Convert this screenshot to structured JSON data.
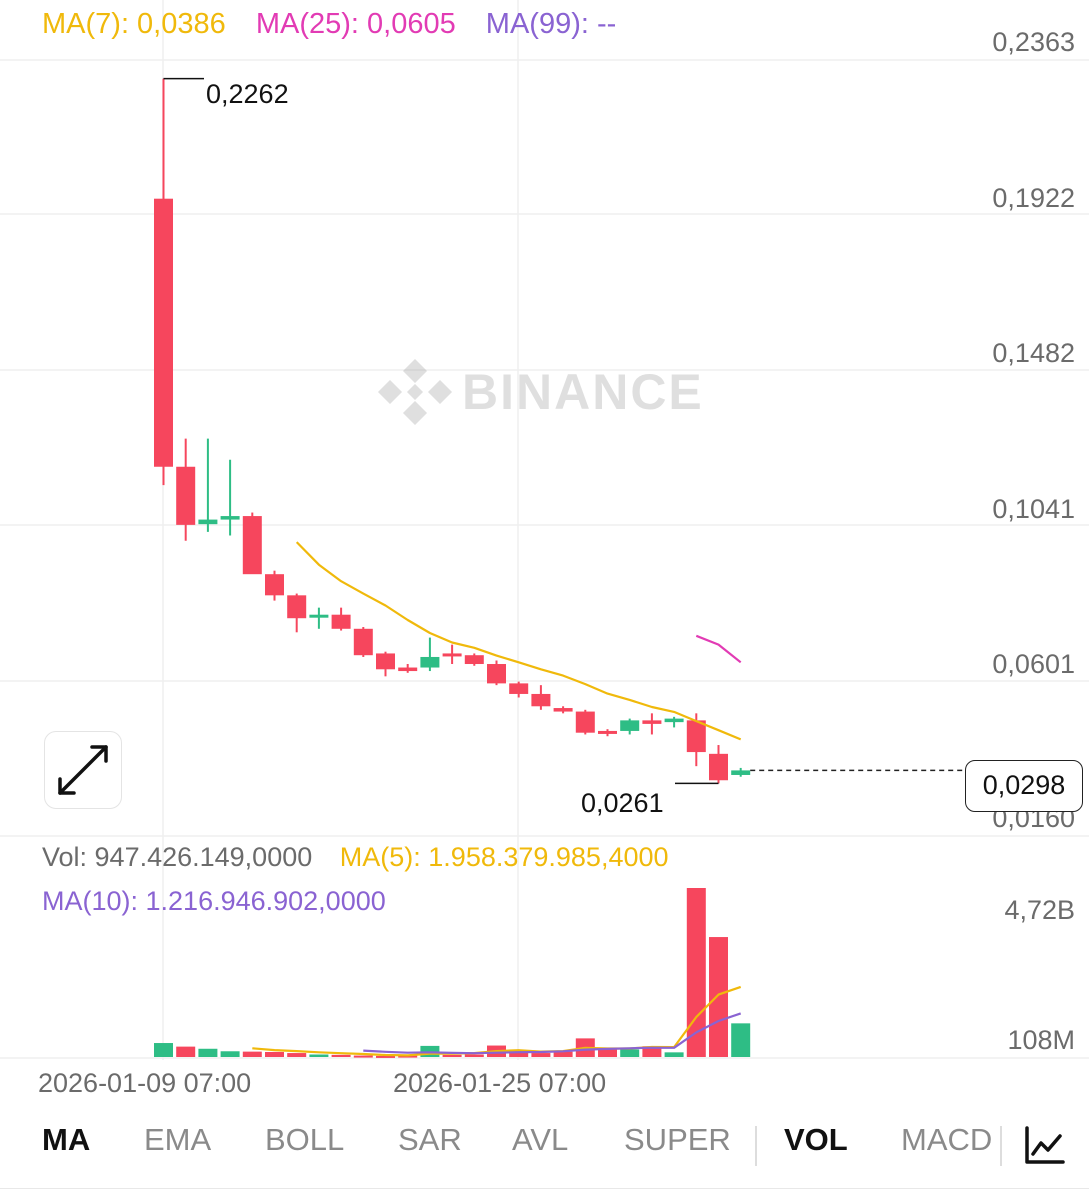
{
  "legend": {
    "ma7": "MA(7): 0,0386",
    "ma25": "MA(25): 0,0605",
    "ma99": "MA(99): --",
    "vol": "Vol: 947.426.149,0000",
    "vol_ma5": "MA(5): 1.958.379.985,4000",
    "vol_ma10": "MA(10): 1.216.946.902,0000"
  },
  "colors": {
    "up": "#2ebd85",
    "down": "#f6465d",
    "ma7": "#f0b90b",
    "ma25": "#e23bb4",
    "ma99": "#8a63d2",
    "grid": "#efefef",
    "axis_text": "#6b6b6b"
  },
  "watermark": {
    "text": "BINANCE",
    "icon": "binance-logo-icon"
  },
  "price_axis": {
    "labels": [
      "0,2363",
      "0,1922",
      "0,1482",
      "0,1041",
      "0,0601",
      "0,0160"
    ],
    "values": [
      0.2363,
      0.1922,
      0.1482,
      0.1041,
      0.0601,
      0.016
    ]
  },
  "volume_axis": {
    "labels": [
      "4,72B",
      "108M"
    ],
    "values": [
      4720000000,
      108000000
    ]
  },
  "time_axis": {
    "labels": [
      "2026-01-09 07:00",
      "2026-01-25 07:00"
    ]
  },
  "annotations": {
    "high_label": "0,2262",
    "low_label": "0,0261",
    "current_price": "0,0298"
  },
  "chart_data": {
    "type": "candlestick",
    "interval_start": "2026-01-09",
    "candles": [
      {
        "o": 0.1921,
        "h": 0.2262,
        "l": 0.1108,
        "c": 0.116
      },
      {
        "o": 0.116,
        "h": 0.124,
        "l": 0.095,
        "c": 0.0995
      },
      {
        "o": 0.0997,
        "h": 0.124,
        "l": 0.0975,
        "c": 0.101
      },
      {
        "o": 0.101,
        "h": 0.118,
        "l": 0.0965,
        "c": 0.102
      },
      {
        "o": 0.102,
        "h": 0.103,
        "l": 0.086,
        "c": 0.0855
      },
      {
        "o": 0.0855,
        "h": 0.0865,
        "l": 0.078,
        "c": 0.0795
      },
      {
        "o": 0.0795,
        "h": 0.08,
        "l": 0.069,
        "c": 0.073
      },
      {
        "o": 0.0735,
        "h": 0.076,
        "l": 0.07,
        "c": 0.074
      },
      {
        "o": 0.074,
        "h": 0.076,
        "l": 0.0695,
        "c": 0.07
      },
      {
        "o": 0.07,
        "h": 0.0705,
        "l": 0.062,
        "c": 0.0625
      },
      {
        "o": 0.063,
        "h": 0.0635,
        "l": 0.0565,
        "c": 0.0585
      },
      {
        "o": 0.059,
        "h": 0.06,
        "l": 0.0575,
        "c": 0.058
      },
      {
        "o": 0.059,
        "h": 0.0675,
        "l": 0.058,
        "c": 0.062
      },
      {
        "o": 0.063,
        "h": 0.0655,
        "l": 0.06,
        "c": 0.0625
      },
      {
        "o": 0.0625,
        "h": 0.063,
        "l": 0.0595,
        "c": 0.06
      },
      {
        "o": 0.06,
        "h": 0.061,
        "l": 0.054,
        "c": 0.0545
      },
      {
        "o": 0.0545,
        "h": 0.055,
        "l": 0.0505,
        "c": 0.0515
      },
      {
        "o": 0.0515,
        "h": 0.054,
        "l": 0.047,
        "c": 0.048
      },
      {
        "o": 0.0475,
        "h": 0.048,
        "l": 0.046,
        "c": 0.0465
      },
      {
        "o": 0.0465,
        "h": 0.047,
        "l": 0.04,
        "c": 0.0405
      },
      {
        "o": 0.041,
        "h": 0.0415,
        "l": 0.0395,
        "c": 0.0405
      },
      {
        "o": 0.041,
        "h": 0.0445,
        "l": 0.04,
        "c": 0.044
      },
      {
        "o": 0.044,
        "h": 0.046,
        "l": 0.04,
        "c": 0.043
      },
      {
        "o": 0.0435,
        "h": 0.045,
        "l": 0.042,
        "c": 0.0445
      },
      {
        "o": 0.044,
        "h": 0.046,
        "l": 0.031,
        "c": 0.035
      },
      {
        "o": 0.0345,
        "h": 0.037,
        "l": 0.0261,
        "c": 0.027
      },
      {
        "o": 0.0285,
        "h": 0.0305,
        "l": 0.028,
        "c": 0.0298
      }
    ],
    "ma7": [
      null,
      null,
      null,
      null,
      null,
      null,
      0.0946,
      0.0882,
      0.0835,
      0.08,
      0.0766,
      0.0725,
      0.0688,
      0.0661,
      0.0646,
      0.0624,
      0.0605,
      0.0585,
      0.0567,
      0.0543,
      0.0516,
      0.0498,
      0.0478,
      0.0464,
      0.0438,
      0.0412,
      0.0386
    ],
    "ma25": [
      null,
      null,
      null,
      null,
      null,
      null,
      null,
      null,
      null,
      null,
      null,
      null,
      null,
      null,
      null,
      null,
      null,
      null,
      null,
      null,
      null,
      null,
      null,
      null,
      0.068,
      0.0655,
      0.0605
    ],
    "volumes": [
      [
        1,
        390000000
      ],
      [
        0,
        290000000
      ],
      [
        1,
        230000000
      ],
      [
        1,
        160000000
      ],
      [
        0,
        150000000
      ],
      [
        0,
        140000000
      ],
      [
        0,
        110000000
      ],
      [
        1,
        70000000
      ],
      [
        0,
        60000000
      ],
      [
        0,
        40000000
      ],
      [
        0,
        30000000
      ],
      [
        0,
        40000000
      ],
      [
        1,
        310000000
      ],
      [
        0,
        60000000
      ],
      [
        0,
        70000000
      ],
      [
        0,
        320000000
      ],
      [
        0,
        180000000
      ],
      [
        0,
        110000000
      ],
      [
        0,
        150000000
      ],
      [
        0,
        520000000
      ],
      [
        0,
        220000000
      ],
      [
        1,
        210000000
      ],
      [
        0,
        300000000
      ],
      [
        1,
        130000000
      ],
      [
        0,
        4720000000
      ],
      [
        0,
        3350000000
      ],
      [
        1,
        940000000
      ]
    ],
    "vol_ma5": [
      null,
      null,
      null,
      null,
      244000000,
      194000000,
      166000000,
      132000000,
      106000000,
      84000000,
      56000000,
      44000000,
      94000000,
      96000000,
      110000000,
      164000000,
      190000000,
      150000000,
      166000000,
      256000000,
      236000000,
      238000000,
      280000000,
      276000000,
      1116000000,
      1742000000,
      1958379985
    ],
    "vol_ma10": [
      null,
      null,
      null,
      null,
      null,
      null,
      null,
      null,
      null,
      180000000,
      145000000,
      120000000,
      130000000,
      114000000,
      106000000,
      120000000,
      134000000,
      141000000,
      160000000,
      208000000,
      226000000,
      244000000,
      260000000,
      258000000,
      688000000,
      1005000000,
      1216946902
    ]
  },
  "tabs": {
    "ma": "MA",
    "ema": "EMA",
    "boll": "BOLL",
    "sar": "SAR",
    "avl": "AVL",
    "super": "SUPER",
    "vol": "VOL",
    "macd": "MACD"
  }
}
